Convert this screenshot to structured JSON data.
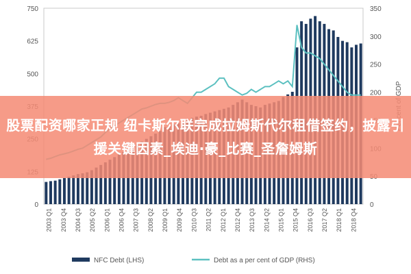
{
  "banner": {
    "text": "股票配资哪家正规 纽卡斯尔联完成拉姆斯代尔租借签约，披露引援关键因素_埃迪·豪_比赛_圣詹姆斯"
  },
  "chart_data": {
    "type": "bar+line",
    "title": "",
    "ylabel_left": "",
    "ylabel_right": "Per cent of GDP",
    "ylim_left": [
      0,
      750
    ],
    "ylim_right": [
      0,
      350
    ],
    "yticks_left": [
      "0",
      "125",
      "250",
      "375",
      "500",
      "625",
      "750"
    ],
    "yticks_right": [
      "0",
      "50",
      "100",
      "150",
      "200",
      "250",
      "300",
      "350"
    ],
    "x_labels": [
      "2003 Q1",
      "2003 Q4",
      "2004 Q3",
      "2005 Q2",
      "2006 Q1",
      "2006 Q4",
      "2007 Q3",
      "2008 Q2",
      "2009 Q1",
      "2009 Q4",
      "2010 Q3",
      "2011 Q2",
      "2012 Q1",
      "2012 Q4",
      "2013 Q3",
      "2014 Q2",
      "2015 Q1",
      "2015 Q4",
      "2016 Q3",
      "2017 Q2",
      "2018 Q1",
      "2018 Q4"
    ],
    "series": [
      {
        "name": "NFC Debt (LHS)",
        "type": "bar",
        "color": "#1f3a5f",
        "values": [
          85,
          88,
          90,
          95,
          100,
          105,
          110,
          115,
          118,
          122,
          130,
          140,
          150,
          160,
          170,
          180,
          190,
          200,
          210,
          220,
          230,
          240,
          250,
          260,
          270,
          280,
          295,
          300,
          305,
          310,
          315,
          320,
          330,
          335,
          338,
          345,
          350,
          355,
          360,
          365,
          370,
          380,
          390,
          400,
          390,
          380,
          375,
          370,
          380,
          385,
          390,
          395,
          410,
          420,
          430,
          600,
          700,
          690,
          710,
          720,
          700,
          690,
          670,
          665,
          640,
          625,
          620,
          600,
          610,
          615
        ]
      },
      {
        "name": "Debt as a per cent of GDP (RHS)",
        "type": "line",
        "color": "#5bc0c0",
        "values": [
          80,
          82,
          85,
          88,
          90,
          92,
          95,
          98,
          100,
          105,
          110,
          115,
          120,
          128,
          135,
          140,
          145,
          150,
          155,
          160,
          165,
          170,
          172,
          175,
          178,
          180,
          180,
          182,
          185,
          190,
          185,
          180,
          190,
          200,
          200,
          205,
          210,
          215,
          225,
          225,
          210,
          205,
          200,
          195,
          198,
          205,
          200,
          205,
          210,
          210,
          215,
          220,
          215,
          220,
          210,
          320,
          280,
          270,
          270,
          265,
          260,
          250,
          240,
          230,
          220,
          210,
          200,
          195,
          195,
          195
        ]
      }
    ],
    "legend": [
      "NFC Debt (LHS)",
      "Debt as a per cent of GDP (RHS)"
    ],
    "legend_position": "bottom",
    "grid": false
  }
}
